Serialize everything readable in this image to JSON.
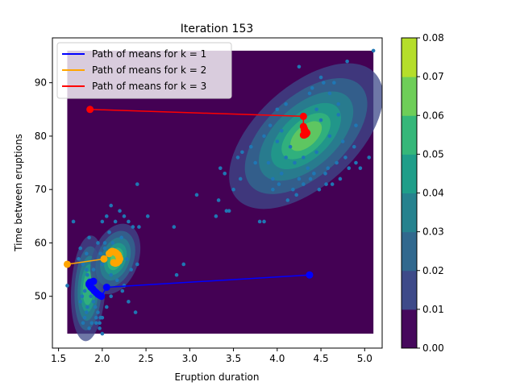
{
  "chart_data": {
    "type": "scatter",
    "title": "Iteration 153",
    "xlabel": "Eruption duration",
    "ylabel": "Time between eruptions",
    "xlim": [
      1.43,
      5.2
    ],
    "ylim": [
      40.3,
      98.4
    ],
    "xticks": [
      "1.5",
      "2.0",
      "2.5",
      "3.0",
      "3.5",
      "4.0",
      "4.5",
      "5.0"
    ],
    "yticks": [
      "50",
      "60",
      "70",
      "80",
      "90"
    ],
    "grid": false,
    "legend_position": "upper-left",
    "background_region": {
      "x": [
        1.6,
        5.1
      ],
      "y": [
        43,
        96
      ]
    },
    "colors": {
      "background": "#440154",
      "points": "#1f77b4",
      "k1": "#0000ff",
      "k2": "#ffa500",
      "k3": "#ff0000"
    },
    "series": [
      {
        "name": "Path of means for k = 1",
        "color": "#0000ff",
        "x": [
          4.37,
          2.05,
          1.99,
          1.97,
          1.95,
          1.93,
          1.91,
          1.89,
          1.87,
          1.86,
          1.85,
          1.85,
          1.86,
          1.88,
          1.9
        ],
        "y": [
          54.0,
          51.7,
          50.0,
          50.2,
          50.4,
          50.7,
          51.0,
          51.4,
          51.7,
          52.0,
          52.2,
          52.4,
          52.6,
          52.7,
          52.8
        ]
      },
      {
        "name": "Path of means for k = 2",
        "color": "#ffa500",
        "x": [
          1.6,
          2.02,
          2.08,
          2.1,
          2.11,
          2.12,
          2.14,
          2.16,
          2.18,
          2.19,
          2.2,
          2.19,
          2.17,
          2.15,
          2.13
        ],
        "y": [
          56.0,
          57.0,
          58.0,
          58.3,
          58.4,
          58.4,
          58.3,
          58.1,
          57.8,
          57.4,
          57.0,
          56.6,
          56.3,
          56.2,
          56.3
        ]
      },
      {
        "name": "Path of means for k = 3",
        "color": "#ff0000",
        "x": [
          1.86,
          4.3,
          4.3,
          4.31,
          4.31,
          4.32,
          4.33,
          4.34,
          4.33,
          4.32,
          4.31,
          4.3
        ],
        "y": [
          85.0,
          83.7,
          81.8,
          81.4,
          81.1,
          80.9,
          80.8,
          80.6,
          80.4,
          80.3,
          80.2,
          80.2
        ]
      }
    ],
    "gaussians": [
      {
        "mx": 4.33,
        "my": 80.0,
        "sx": 0.4,
        "sy": 6.2,
        "rho": 0.55
      },
      {
        "mx": 1.84,
        "my": 51.5,
        "sx": 0.09,
        "sy": 4.5,
        "rho": 0.15
      },
      {
        "mx": 2.15,
        "my": 57.0,
        "sx": 0.13,
        "sy": 3.0,
        "rho": 0.3
      }
    ],
    "data_points": {
      "x": [
        5.1,
        4.25,
        4.37,
        4.5,
        4.45,
        4.6,
        4.7,
        4.53,
        4.4,
        4.65,
        4.8,
        4.28,
        4.1,
        4.0,
        3.92,
        4.05,
        4.5,
        4.7,
        4.9,
        4.88,
        4.6,
        4.75,
        4.45,
        4.2,
        4.3,
        4.15,
        4.0,
        3.85,
        3.7,
        3.6,
        3.9,
        4.1,
        4.35,
        4.55,
        4.68,
        4.78,
        4.95,
        5.05,
        4.25,
        4.42,
        4.58,
        4.72,
        4.3,
        4.18,
        4.05,
        3.95,
        3.75,
        3.55,
        3.35,
        3.4,
        3.5,
        3.58,
        3.8,
        4.02,
        4.22,
        4.48,
        4.63,
        4.82,
        3.33,
        3.42,
        3.45,
        3.08,
        3.85,
        3.95,
        4.12,
        4.38,
        4.56,
        4.9,
        3.3,
        2.52,
        2.4,
        2.0,
        2.05,
        2.2,
        2.25,
        2.3,
        2.1,
        2.15,
        2.35,
        2.42,
        2.08,
        2.03,
        2.12,
        2.22,
        1.67,
        2.82,
        2.93,
        2.85,
        1.75,
        1.73,
        1.78,
        1.82,
        1.83,
        1.85,
        1.88,
        1.8,
        1.87,
        1.9,
        1.92,
        1.95,
        2.0,
        1.97,
        1.83,
        1.82,
        1.8,
        1.78,
        1.85,
        1.88,
        1.93,
        1.75,
        1.77,
        1.9,
        2.0,
        1.95,
        1.85,
        1.98,
        2.03,
        2.18,
        2.28,
        2.33,
        2.1,
        2.17,
        2.25,
        2.23,
        2.1,
        2.05,
        2.3,
        2.38,
        1.98,
        2.0,
        2.4,
        1.93,
        1.97,
        1.6,
        1.82
      ],
      "y": [
        96.0,
        93.0,
        88.0,
        91.0,
        85.0,
        88.0,
        86.0,
        90.0,
        89.0,
        90.0,
        94.0,
        84.0,
        86.0,
        85.0,
        82.0,
        81.0,
        83.0,
        84.0,
        82.0,
        78.0,
        80.0,
        79.0,
        77.0,
        75.0,
        76.0,
        78.0,
        79.0,
        80.0,
        78.0,
        77.0,
        75.0,
        76.0,
        74.0,
        73.0,
        75.0,
        76.0,
        74.0,
        76.0,
        72.0,
        73.0,
        74.0,
        72.0,
        71.0,
        70.0,
        73.0,
        72.0,
        75.0,
        76.0,
        74.0,
        73.0,
        70.0,
        72.0,
        64.0,
        71.0,
        69.0,
        70.0,
        71.0,
        74.0,
        68.0,
        66.0,
        66.0,
        69.0,
        64.0,
        70.0,
        68.0,
        72.0,
        71.0,
        75.0,
        65.0,
        65.0,
        71.0,
        64.0,
        65.0,
        66.0,
        65.0,
        64.0,
        67.0,
        64.0,
        63.0,
        63.0,
        62.0,
        60.0,
        60.0,
        61.0,
        64.0,
        63.0,
        56.0,
        54.0,
        59.0,
        57.0,
        56.0,
        55.0,
        54.0,
        53.0,
        52.0,
        51.0,
        50.0,
        49.0,
        48.0,
        47.0,
        46.0,
        45.0,
        48.0,
        47.0,
        46.0,
        45.0,
        44.0,
        45.0,
        46.0,
        49.0,
        50.0,
        55.0,
        56.0,
        60.0,
        61.0,
        58.0,
        59.0,
        58.0,
        57.0,
        55.0,
        54.0,
        53.0,
        52.0,
        51.0,
        50.0,
        48.0,
        49.0,
        47.0,
        46.0,
        43.0,
        56.0,
        45.0,
        44.0,
        52.0,
        58.0
      ]
    },
    "colorbar": {
      "ticks": [
        "0.00",
        "0.01",
        "0.02",
        "0.03",
        "0.04",
        "0.05",
        "0.06",
        "0.07",
        "0.08"
      ],
      "colors": [
        "#46085c",
        "#3e4a89",
        "#31688e",
        "#26828e",
        "#1f9e89",
        "#35b779",
        "#6ece58",
        "#b5de2b"
      ],
      "max": 0.08
    }
  }
}
